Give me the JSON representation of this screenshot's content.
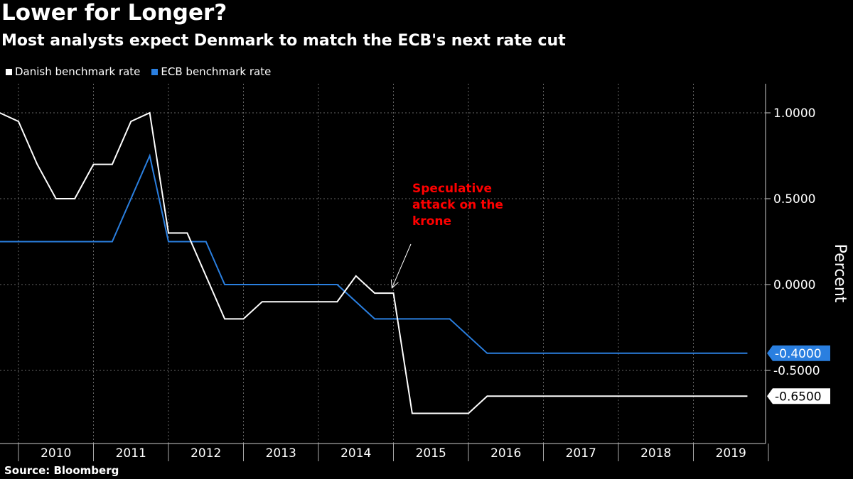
{
  "chart_data": {
    "type": "line",
    "title": "Lower for Longer?",
    "subtitle": "Most analysts expect Denmark to match the ECB's next rate cut",
    "ylabel": "Percent",
    "xlabel": "",
    "ylim": [
      -0.9,
      1.15
    ],
    "xlim": [
      2009.75,
      2019.97
    ],
    "yticks": [
      1.0,
      0.5,
      0.0,
      -0.5
    ],
    "ytick_labels": [
      "1.0000",
      "0.5000",
      "0.0000",
      "-0.5000"
    ],
    "xtick_labels": [
      "2010",
      "2011",
      "2012",
      "2013",
      "2014",
      "2015",
      "2016",
      "2017",
      "2018",
      "2019"
    ],
    "grid": true,
    "legend_placement": "top-left",
    "series": [
      {
        "name": "Danish benchmark rate",
        "color": "#ffffff",
        "last_label": "-0.6500",
        "x": [
          2009.75,
          2010.0,
          2010.25,
          2010.5,
          2010.75,
          2011.0,
          2011.25,
          2011.5,
          2011.75,
          2012.0,
          2012.25,
          2012.75,
          2013.0,
          2013.25,
          2014.25,
          2014.5,
          2014.75,
          2015.0,
          2015.25,
          2016.0,
          2016.25,
          2019.72
        ],
        "y": [
          1.0,
          0.95,
          0.7,
          0.5,
          0.5,
          0.7,
          0.7,
          0.95,
          1.0,
          0.3,
          0.3,
          -0.2,
          -0.2,
          -0.1,
          -0.1,
          0.05,
          -0.05,
          -0.05,
          -0.75,
          -0.75,
          -0.65,
          -0.65
        ]
      },
      {
        "name": "ECB benchmark rate",
        "color": "#2a7fe0",
        "last_label": "-0.4000",
        "x": [
          2009.75,
          2011.25,
          2011.75,
          2012.0,
          2012.5,
          2012.75,
          2014.25,
          2014.75,
          2015.75,
          2016.25,
          2019.72
        ],
        "y": [
          0.25,
          0.25,
          0.75,
          0.25,
          0.25,
          0.0,
          0.0,
          -0.2,
          -0.2,
          -0.4,
          -0.4
        ]
      }
    ],
    "annotations": [
      {
        "lines": [
          "Speculative",
          "attack on the",
          "krone"
        ],
        "color": "#ff0000",
        "points_to": {
          "x": 2014.98,
          "y": -0.02
        }
      }
    ]
  },
  "source": "Source: Bloomberg"
}
